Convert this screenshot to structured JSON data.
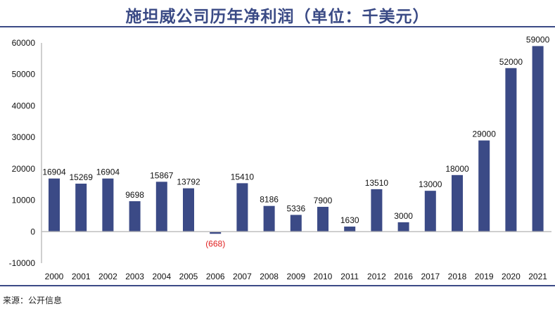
{
  "title": "施坦威公司历年净利润（单位：千美元）",
  "source": "来源：公开信息",
  "colors": {
    "bar": "#3b4a86",
    "rule": "#3b4a86",
    "negative_label": "#e02020",
    "axis": "#bfbfbf"
  },
  "chart_data": {
    "type": "bar",
    "title": "施坦威公司历年净利润（单位：千美元）",
    "categories": [
      "2000",
      "2001",
      "2002",
      "2003",
      "2004",
      "2005",
      "2006",
      "2007",
      "2008",
      "2009",
      "2010",
      "2011",
      "2012",
      "2016",
      "2017",
      "2018",
      "2019",
      "2020",
      "2021"
    ],
    "values": [
      16904,
      15269,
      16904,
      9698,
      15867,
      13792,
      -668,
      15410,
      8186,
      5336,
      7900,
      1630,
      13510,
      3000,
      13000,
      18000,
      29000,
      52000,
      59000
    ],
    "data_labels": [
      "16904",
      "15269",
      "16904",
      "9698",
      "15867",
      "13792",
      "(668)",
      "15410",
      "8186",
      "5336",
      "7900",
      "1630",
      "13510",
      "3000",
      "13000",
      "18000",
      "29000",
      "52000",
      "59000"
    ],
    "yticks": [
      "60000",
      "50000",
      "40000",
      "30000",
      "20000",
      "10000",
      "0",
      "-10000"
    ],
    "ylim": [
      -10000,
      60000
    ],
    "grid": false,
    "xlabel": "",
    "ylabel": ""
  }
}
